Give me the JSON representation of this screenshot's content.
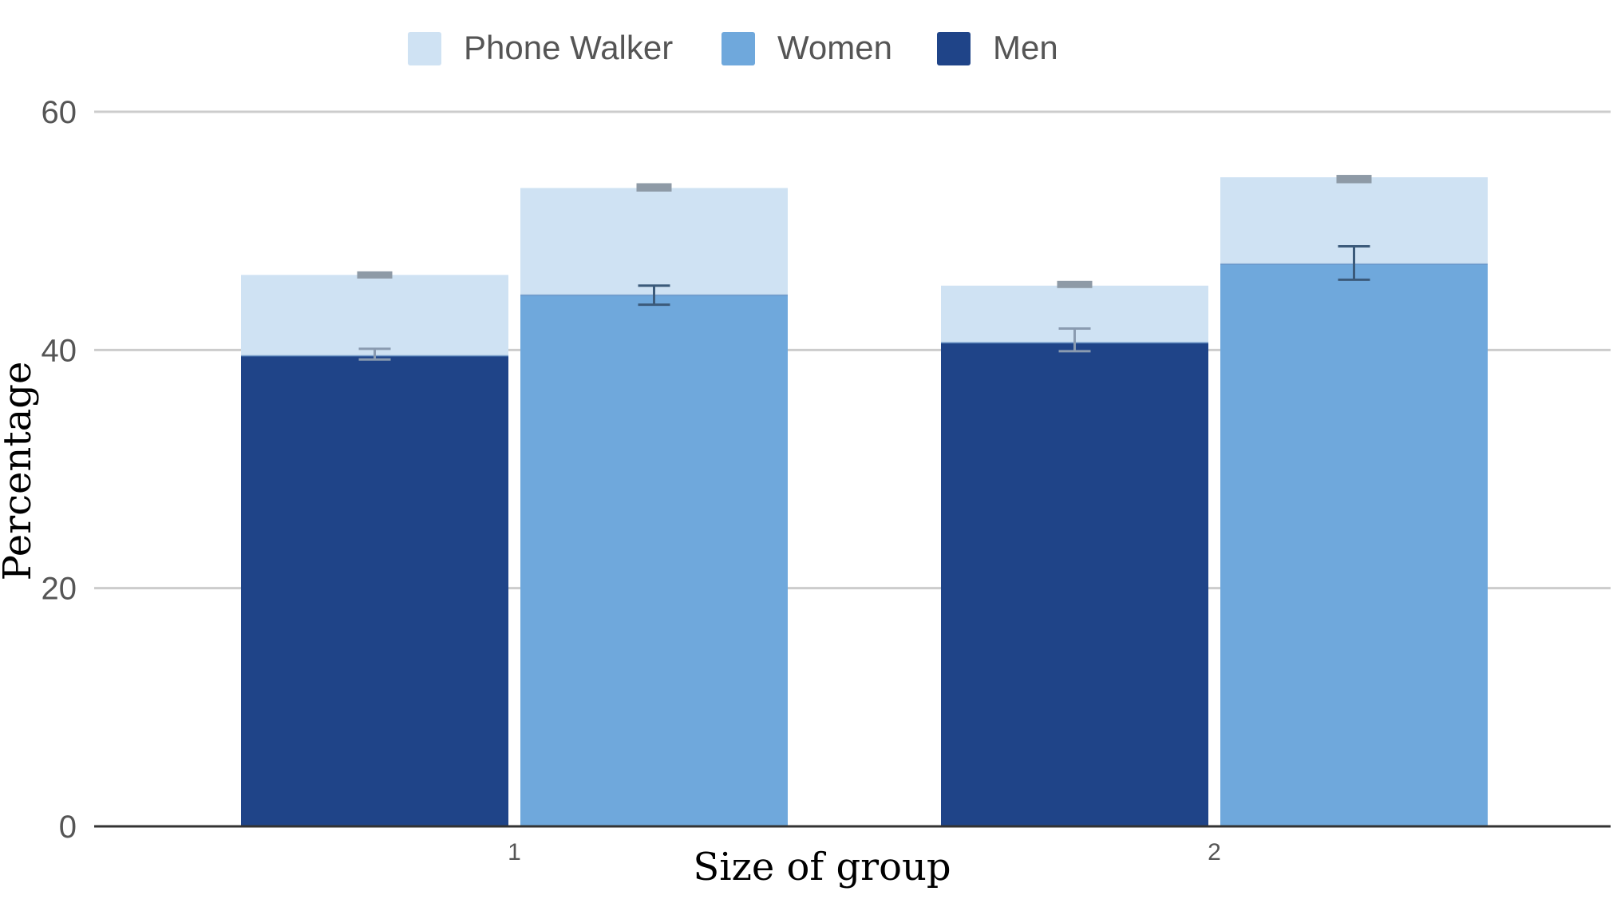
{
  "chart_data": {
    "type": "bar",
    "stacked": true,
    "xlabel": "Size of group",
    "ylabel": "Percentage",
    "ylim": [
      0,
      60
    ],
    "yticks": [
      0,
      20,
      40,
      60
    ],
    "grid": true,
    "legend_position": "top-center",
    "groups": [
      {
        "label": "1",
        "bars": [
          {
            "series": "Men",
            "value": 39.5,
            "error": [
              39.2,
              40.1
            ],
            "overlay": {
              "series": "Phone Walker",
              "value": 46.3,
              "error": [
                46.2,
                46.4
              ]
            }
          },
          {
            "series": "Women",
            "value": 44.6,
            "error": [
              43.8,
              45.4
            ],
            "overlay": {
              "series": "Phone Walker",
              "value": 53.6,
              "error": [
                53.5,
                53.8
              ]
            }
          }
        ]
      },
      {
        "label": "2",
        "bars": [
          {
            "series": "Men",
            "value": 40.6,
            "error": [
              39.9,
              41.8
            ],
            "overlay": {
              "series": "Phone Walker",
              "value": 45.4,
              "error": [
                45.4,
                45.6
              ]
            }
          },
          {
            "series": "Women",
            "value": 47.2,
            "error": [
              45.9,
              48.7
            ],
            "overlay": {
              "series": "Phone Walker",
              "value": 54.5,
              "error": [
                54.2,
                54.5
              ]
            }
          }
        ]
      }
    ],
    "legend": [
      {
        "name": "Phone Walker",
        "color": "#cfe2f3"
      },
      {
        "name": "Women",
        "color": "#6fa8dc"
      },
      {
        "name": "Men",
        "color": "#1f4488"
      }
    ],
    "colors": {
      "Phone Walker": "#cfe2f3",
      "Women": "#6fa8dc",
      "Men": "#1f4488",
      "grid": "#cccccc",
      "axis": "#333333",
      "error_bar": "#3b5a7a",
      "error_bar_light": "#8a9bb0"
    }
  }
}
